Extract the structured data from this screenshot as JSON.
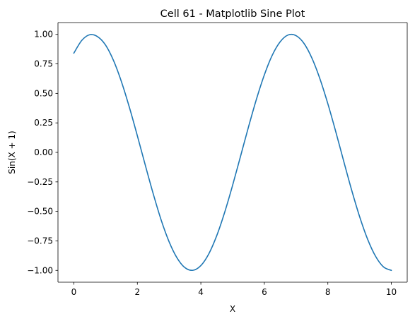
{
  "chart_data": {
    "type": "line",
    "title": "Cell 61 - Matplotlib Sine Plot",
    "xlabel": "X",
    "ylabel": "Sin(X + 1)",
    "xlim": [
      -0.5,
      10.5
    ],
    "ylim": [
      -1.1,
      1.1
    ],
    "xticks": [
      0,
      2,
      4,
      6,
      8,
      10
    ],
    "xtick_labels": [
      "0",
      "2",
      "4",
      "6",
      "8",
      "10"
    ],
    "yticks": [
      1.0,
      0.75,
      0.5,
      0.25,
      0.0,
      -0.25,
      -0.5,
      -0.75,
      -1.0
    ],
    "ytick_labels": [
      "1.00",
      "0.75",
      "0.50",
      "0.25",
      "0.00",
      "−0.25",
      "−0.50",
      "−0.75",
      "−1.00"
    ],
    "grid": false,
    "legend": "none",
    "series": [
      {
        "color": "#1f77b4",
        "x": [
          0,
          0.25,
          0.5,
          0.75,
          1,
          1.25,
          1.5,
          1.75,
          2,
          2.25,
          2.5,
          2.75,
          3,
          3.25,
          3.5,
          3.75,
          4,
          4.25,
          4.5,
          4.75,
          5,
          5.25,
          5.5,
          5.75,
          6,
          6.25,
          6.5,
          6.75,
          7,
          7.25,
          7.5,
          7.75,
          8,
          8.25,
          8.5,
          8.75,
          9,
          9.25,
          9.5,
          9.75,
          10
        ],
        "y": [
          0.841,
          0.949,
          0.997,
          0.98,
          0.909,
          0.778,
          0.598,
          0.381,
          0.141,
          -0.108,
          -0.351,
          -0.573,
          -0.757,
          -0.894,
          -0.977,
          -0.999,
          -0.959,
          -0.86,
          -0.706,
          -0.508,
          -0.279,
          -0.033,
          0.215,
          0.45,
          0.657,
          0.824,
          0.938,
          0.995,
          0.989,
          0.923,
          0.798,
          0.624,
          0.412,
          0.175,
          -0.075,
          -0.32,
          -0.544,
          -0.734,
          -0.879,
          -0.97,
          -1.0
        ]
      }
    ]
  }
}
